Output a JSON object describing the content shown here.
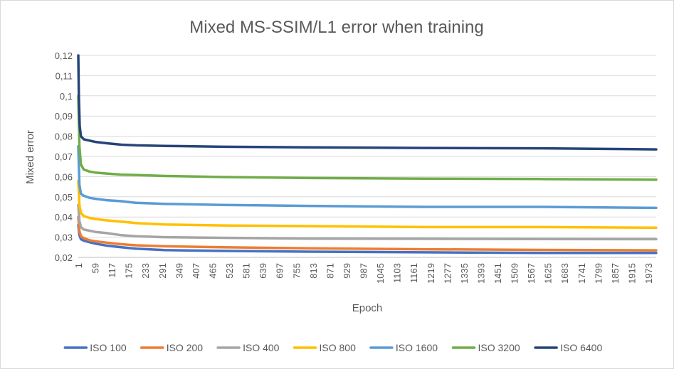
{
  "chart_data": {
    "type": "line",
    "title": "Mixed MS-SSIM/L1 error when training",
    "xlabel": "Epoch",
    "ylabel": "Mixed error",
    "ylim": [
      0.02,
      0.12
    ],
    "y_ticks": [
      "0,02",
      "0,03",
      "0,04",
      "0,05",
      "0,06",
      "0,07",
      "0,08",
      "0,09",
      "0,1",
      "0,11",
      "0,12"
    ],
    "x_ticks": [
      "1",
      "59",
      "117",
      "175",
      "233",
      "291",
      "349",
      "407",
      "465",
      "523",
      "581",
      "639",
      "697",
      "755",
      "813",
      "871",
      "929",
      "987",
      "1045",
      "1103",
      "1161",
      "1219",
      "1277",
      "1335",
      "1393",
      "1451",
      "1509",
      "1567",
      "1625",
      "1683",
      "1741",
      "1799",
      "1857",
      "1915",
      "1973"
    ],
    "x_range": [
      1,
      2000
    ],
    "grid": true,
    "legend_position": "bottom",
    "series": [
      {
        "name": "ISO 100",
        "color": "#4472c4",
        "x": [
          1,
          5,
          10,
          20,
          40,
          60,
          100,
          150,
          200,
          300,
          500,
          800,
          1200,
          1600,
          2000
        ],
        "values": [
          0.036,
          0.031,
          0.029,
          0.0283,
          0.0275,
          0.0268,
          0.0258,
          0.025,
          0.0243,
          0.0236,
          0.0232,
          0.0228,
          0.0225,
          0.0222,
          0.0222
        ]
      },
      {
        "name": "ISO 200",
        "color": "#ed7d31",
        "x": [
          1,
          5,
          10,
          20,
          40,
          60,
          100,
          150,
          200,
          300,
          500,
          800,
          1200,
          1600,
          2000
        ],
        "values": [
          0.04,
          0.033,
          0.0305,
          0.0295,
          0.0285,
          0.028,
          0.0273,
          0.0265,
          0.026,
          0.0255,
          0.025,
          0.0245,
          0.024,
          0.0237,
          0.0235
        ]
      },
      {
        "name": "ISO 400",
        "color": "#a5a5a5",
        "x": [
          1,
          5,
          10,
          20,
          40,
          60,
          100,
          150,
          200,
          300,
          500,
          800,
          1200,
          1600,
          2000
        ],
        "values": [
          0.046,
          0.038,
          0.035,
          0.0338,
          0.0332,
          0.0326,
          0.032,
          0.031,
          0.0305,
          0.03,
          0.0297,
          0.0293,
          0.0292,
          0.0291,
          0.029
        ]
      },
      {
        "name": "ISO 800",
        "color": "#ffc000",
        "x": [
          1,
          5,
          10,
          20,
          40,
          60,
          100,
          150,
          200,
          300,
          500,
          800,
          1200,
          1600,
          2000
        ],
        "values": [
          0.058,
          0.046,
          0.042,
          0.0405,
          0.0395,
          0.039,
          0.0383,
          0.0377,
          0.037,
          0.0363,
          0.0358,
          0.0355,
          0.035,
          0.035,
          0.0347
        ]
      },
      {
        "name": "ISO 1600",
        "color": "#5b9bd5",
        "x": [
          1,
          5,
          10,
          20,
          40,
          60,
          100,
          150,
          200,
          300,
          500,
          800,
          1200,
          1600,
          2000
        ],
        "values": [
          0.075,
          0.056,
          0.0515,
          0.0505,
          0.0495,
          0.049,
          0.0483,
          0.0478,
          0.047,
          0.0465,
          0.046,
          0.0455,
          0.045,
          0.045,
          0.0445
        ]
      },
      {
        "name": "ISO 3200",
        "color": "#70ad47",
        "x": [
          1,
          5,
          10,
          20,
          40,
          60,
          100,
          150,
          200,
          300,
          500,
          800,
          1200,
          1600,
          2000
        ],
        "values": [
          0.1,
          0.075,
          0.066,
          0.0635,
          0.0625,
          0.062,
          0.0615,
          0.061,
          0.0608,
          0.0603,
          0.0598,
          0.0593,
          0.059,
          0.0588,
          0.0585
        ]
      },
      {
        "name": "ISO 6400",
        "color": "#264478",
        "x": [
          1,
          3,
          6,
          10,
          20,
          40,
          60,
          100,
          150,
          200,
          300,
          500,
          800,
          1200,
          1600,
          2000
        ],
        "values": [
          0.12,
          0.1,
          0.085,
          0.08,
          0.0785,
          0.0778,
          0.0772,
          0.0765,
          0.0758,
          0.0755,
          0.0752,
          0.0748,
          0.0745,
          0.0742,
          0.074,
          0.0735
        ]
      }
    ]
  }
}
